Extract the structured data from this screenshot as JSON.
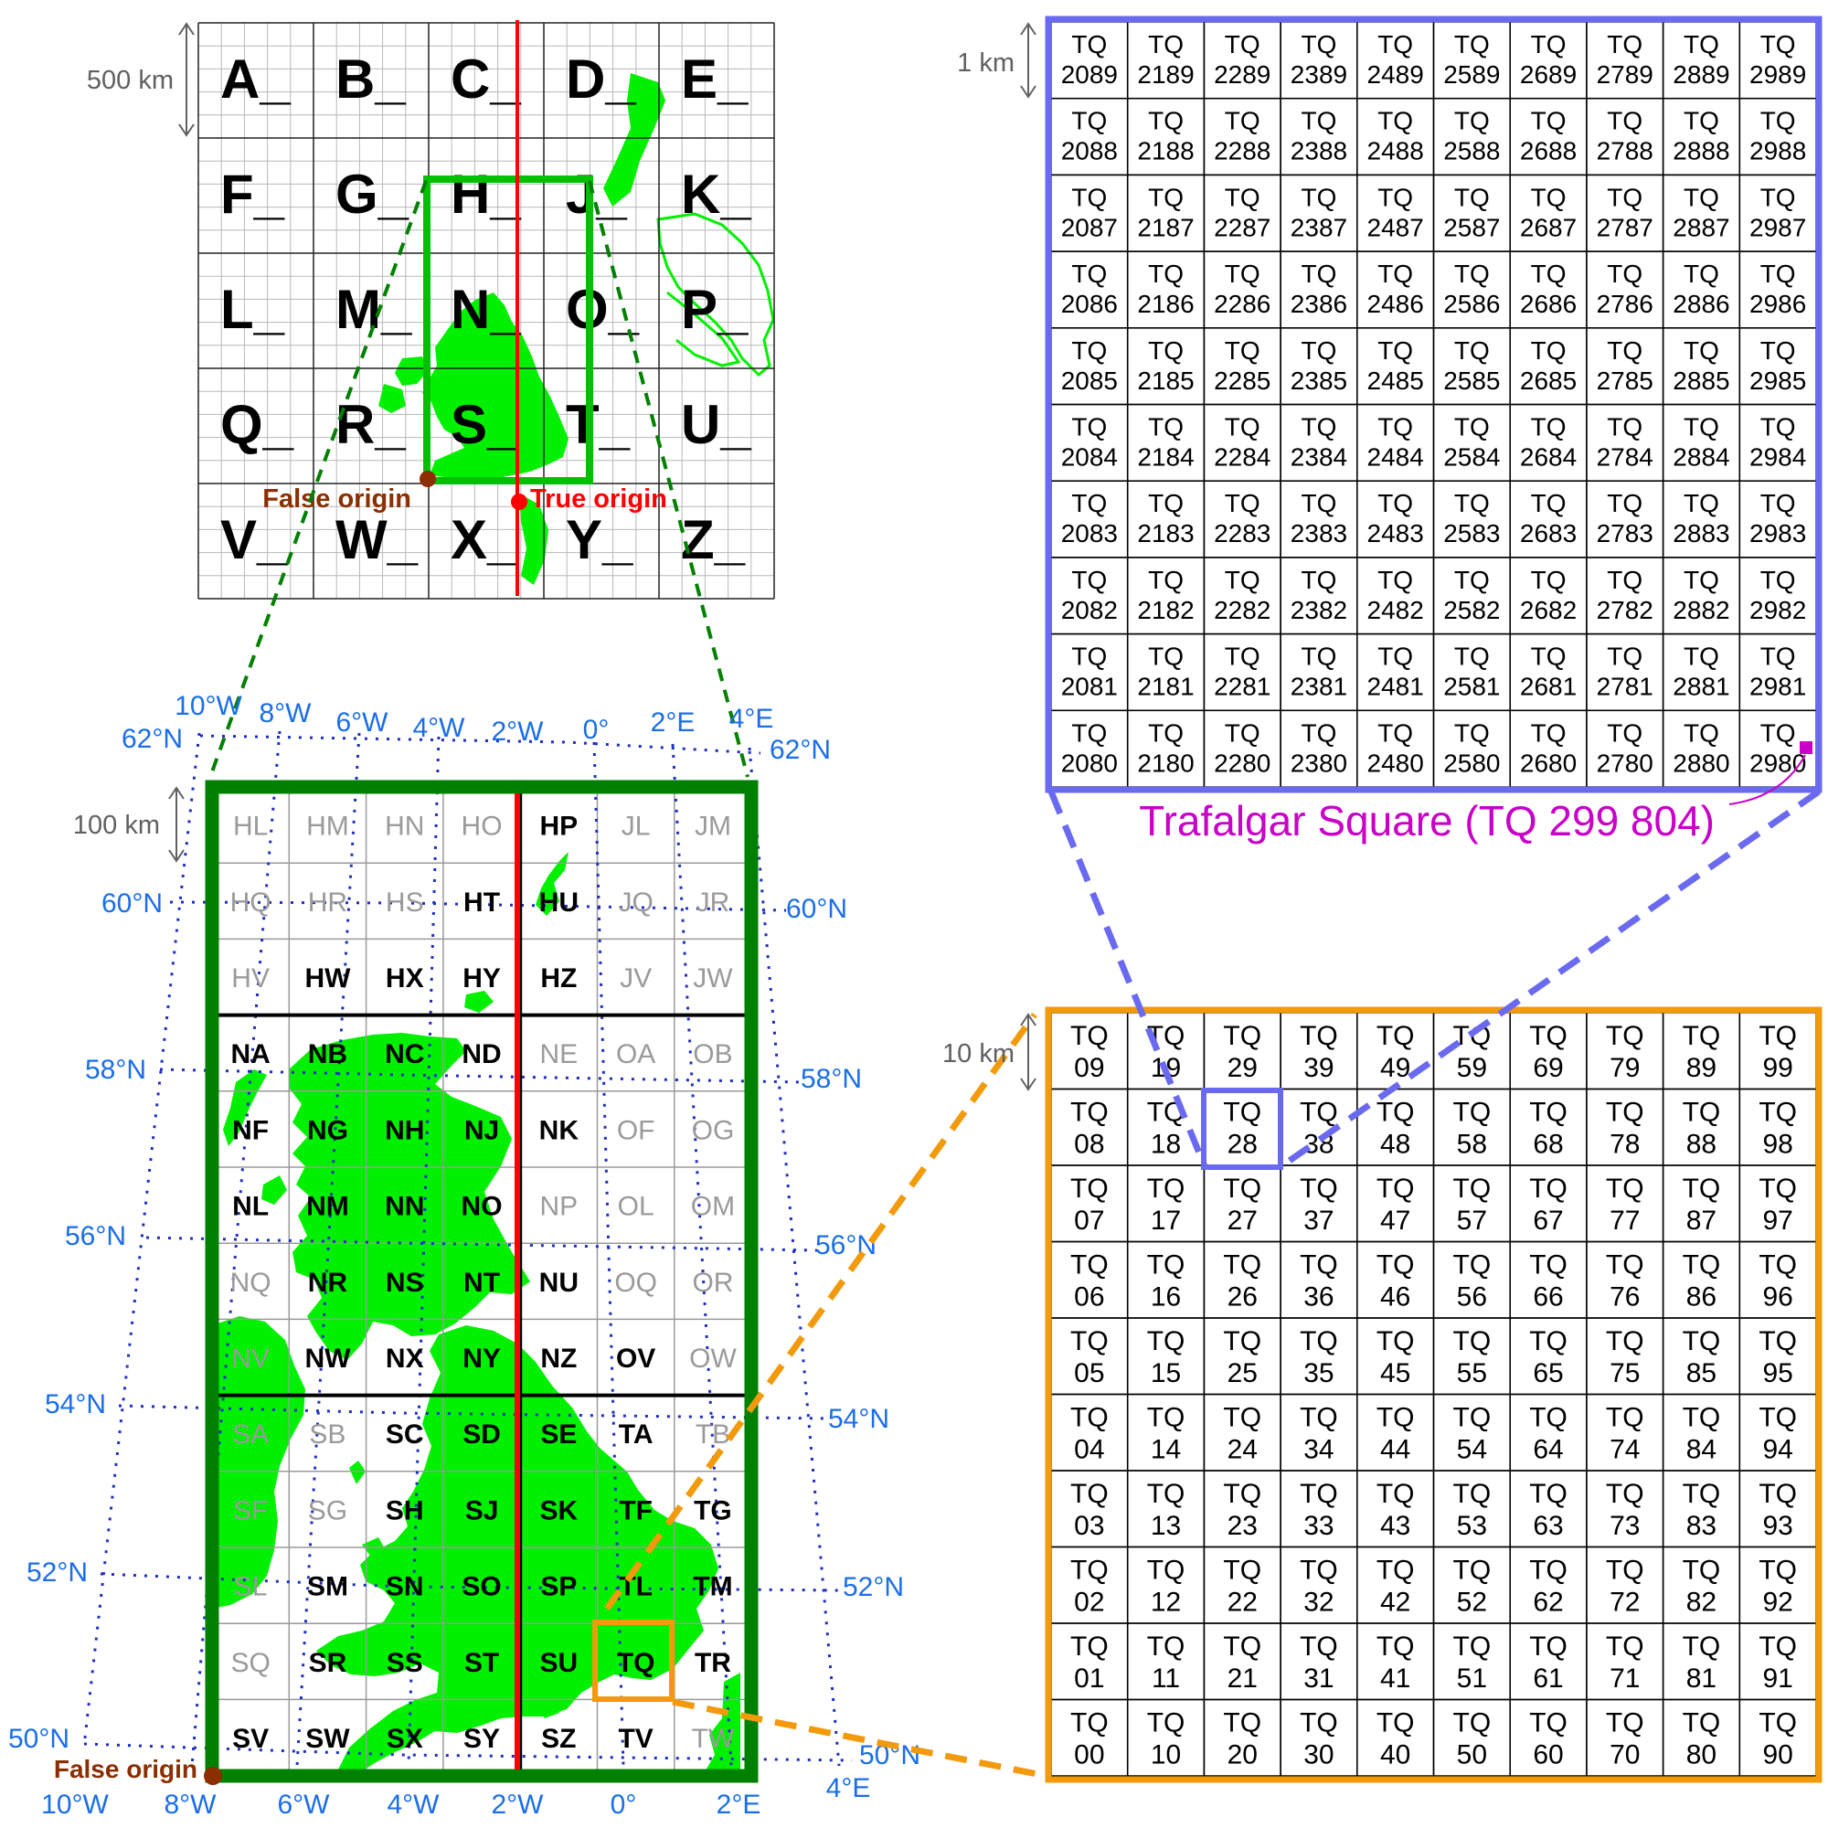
{
  "overview": {
    "rows": [
      [
        "A_",
        "B_",
        "C_",
        "D_",
        "E_"
      ],
      [
        "F_",
        "G_",
        "H_",
        "J_",
        "K_"
      ],
      [
        "L_",
        "M_",
        "N_",
        "O_",
        "P_"
      ],
      [
        "Q_",
        "R_",
        "S_",
        "T_",
        "U_"
      ],
      [
        "V_",
        "W_",
        "X_",
        "Y_",
        "Z_"
      ]
    ],
    "scale_label": "500 km",
    "false_origin_label": "False origin",
    "true_origin_label": "True origin"
  },
  "main_grid": {
    "scale_label": "100 km",
    "false_origin_label": "False origin",
    "rows": [
      [
        {
          "c": "HL",
          "a": false
        },
        {
          "c": "HM",
          "a": false
        },
        {
          "c": "HN",
          "a": false
        },
        {
          "c": "HO",
          "a": false
        },
        {
          "c": "HP",
          "a": true
        },
        {
          "c": "JL",
          "a": false
        },
        {
          "c": "JM",
          "a": false
        }
      ],
      [
        {
          "c": "HQ",
          "a": false
        },
        {
          "c": "HR",
          "a": false
        },
        {
          "c": "HS",
          "a": false
        },
        {
          "c": "HT",
          "a": true
        },
        {
          "c": "HU",
          "a": true
        },
        {
          "c": "JQ",
          "a": false
        },
        {
          "c": "JR",
          "a": false
        }
      ],
      [
        {
          "c": "HV",
          "a": false
        },
        {
          "c": "HW",
          "a": true
        },
        {
          "c": "HX",
          "a": true
        },
        {
          "c": "HY",
          "a": true
        },
        {
          "c": "HZ",
          "a": true
        },
        {
          "c": "JV",
          "a": false
        },
        {
          "c": "JW",
          "a": false
        }
      ],
      [
        {
          "c": "NA",
          "a": true
        },
        {
          "c": "NB",
          "a": true
        },
        {
          "c": "NC",
          "a": true
        },
        {
          "c": "ND",
          "a": true
        },
        {
          "c": "NE",
          "a": false
        },
        {
          "c": "OA",
          "a": false
        },
        {
          "c": "OB",
          "a": false
        }
      ],
      [
        {
          "c": "NF",
          "a": true
        },
        {
          "c": "NG",
          "a": true
        },
        {
          "c": "NH",
          "a": true
        },
        {
          "c": "NJ",
          "a": true
        },
        {
          "c": "NK",
          "a": true
        },
        {
          "c": "OF",
          "a": false
        },
        {
          "c": "OG",
          "a": false
        }
      ],
      [
        {
          "c": "NL",
          "a": true
        },
        {
          "c": "NM",
          "a": true
        },
        {
          "c": "NN",
          "a": true
        },
        {
          "c": "NO",
          "a": true
        },
        {
          "c": "NP",
          "a": false
        },
        {
          "c": "OL",
          "a": false
        },
        {
          "c": "OM",
          "a": false
        }
      ],
      [
        {
          "c": "NQ",
          "a": false
        },
        {
          "c": "NR",
          "a": true
        },
        {
          "c": "NS",
          "a": true
        },
        {
          "c": "NT",
          "a": true
        },
        {
          "c": "NU",
          "a": true
        },
        {
          "c": "OQ",
          "a": false
        },
        {
          "c": "OR",
          "a": false
        }
      ],
      [
        {
          "c": "NV",
          "a": false
        },
        {
          "c": "NW",
          "a": true
        },
        {
          "c": "NX",
          "a": true
        },
        {
          "c": "NY",
          "a": true
        },
        {
          "c": "NZ",
          "a": true
        },
        {
          "c": "OV",
          "a": true
        },
        {
          "c": "OW",
          "a": false
        }
      ],
      [
        {
          "c": "SA",
          "a": false
        },
        {
          "c": "SB",
          "a": false
        },
        {
          "c": "SC",
          "a": true
        },
        {
          "c": "SD",
          "a": true
        },
        {
          "c": "SE",
          "a": true
        },
        {
          "c": "TA",
          "a": true
        },
        {
          "c": "TB",
          "a": false
        }
      ],
      [
        {
          "c": "SF",
          "a": false
        },
        {
          "c": "SG",
          "a": false
        },
        {
          "c": "SH",
          "a": true
        },
        {
          "c": "SJ",
          "a": true
        },
        {
          "c": "SK",
          "a": true
        },
        {
          "c": "TF",
          "a": true
        },
        {
          "c": "TG",
          "a": true
        }
      ],
      [
        {
          "c": "SL",
          "a": false
        },
        {
          "c": "SM",
          "a": true
        },
        {
          "c": "SN",
          "a": true
        },
        {
          "c": "SO",
          "a": true
        },
        {
          "c": "SP",
          "a": true
        },
        {
          "c": "TL",
          "a": true
        },
        {
          "c": "TM",
          "a": true
        }
      ],
      [
        {
          "c": "SQ",
          "a": false
        },
        {
          "c": "SR",
          "a": true
        },
        {
          "c": "SS",
          "a": true
        },
        {
          "c": "ST",
          "a": true
        },
        {
          "c": "SU",
          "a": true
        },
        {
          "c": "TQ",
          "a": true
        },
        {
          "c": "TR",
          "a": true
        }
      ],
      [
        {
          "c": "SV",
          "a": true
        },
        {
          "c": "SW",
          "a": true
        },
        {
          "c": "SX",
          "a": true
        },
        {
          "c": "SY",
          "a": true
        },
        {
          "c": "SZ",
          "a": true
        },
        {
          "c": "TV",
          "a": true
        },
        {
          "c": "TW",
          "a": false
        }
      ]
    ],
    "lon_top": [
      "10°W",
      "8°W",
      "6°W",
      "4°W",
      "2°W",
      "0°",
      "2°E",
      "4°E"
    ],
    "lon_bottom": [
      "10°W",
      "8°W",
      "6°W",
      "4°W",
      "2°W",
      "0°",
      "2°E",
      "4°E"
    ],
    "lat_left": [
      "62°N",
      "60°N",
      "58°N",
      "56°N",
      "54°N",
      "52°N",
      "50°N"
    ],
    "lat_right": [
      "62°N",
      "60°N",
      "58°N",
      "56°N",
      "54°N",
      "52°N",
      "50°N"
    ]
  },
  "tq_10km": {
    "scale_label": "10 km",
    "prefix": "TQ",
    "highlight": "TQ 28"
  },
  "tq_1km": {
    "scale_label": "1 km",
    "prefix": "TQ",
    "highlight_label": "Trafalgar Square (TQ 299 804)"
  },
  "colors": {
    "green_frame": "#008000",
    "land": "#00f000",
    "meridian": "#ff0000",
    "orange": "#f29a0c",
    "blue": "#6a6af0",
    "coord": "#1a6ee8",
    "magenta": "#c800c8",
    "false_origin": "#8b2e00"
  }
}
